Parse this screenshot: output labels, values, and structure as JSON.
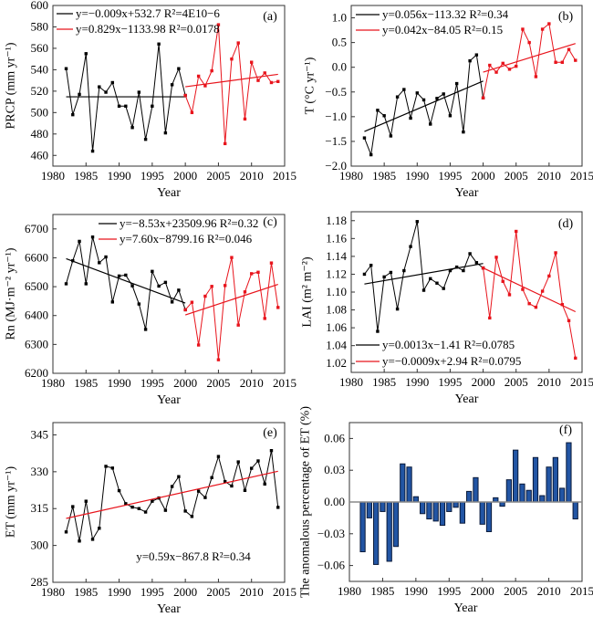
{
  "colors": {
    "period1": "#000000",
    "period2": "#e8141c",
    "bar": "#2255a4",
    "bar_edge": "#0a1a3a"
  },
  "chart_data": [
    {
      "panel": "(a)",
      "type": "line",
      "ylabel": "PRCP (mm yr⁻¹)",
      "xlabel": "Year",
      "xlim": [
        1980,
        2015
      ],
      "xtick_labels": [
        "1980",
        "1985",
        "1990",
        "1995",
        "2000",
        "2005",
        "2010",
        "2015"
      ],
      "ylim": [
        450,
        600
      ],
      "yticks": [
        460,
        480,
        500,
        520,
        540,
        560,
        580,
        600
      ],
      "ytick_labels": [
        "460",
        "480",
        "500",
        "520",
        "540",
        "560",
        "580",
        "600"
      ],
      "legend_position": "top-left",
      "series": [
        {
          "name": "y=−0.009x+532.7 R²=4E10−6",
          "color": "#000000",
          "x": [
            1982,
            1983,
            1984,
            1985,
            1986,
            1987,
            1988,
            1989,
            1990,
            1991,
            1992,
            1993,
            1994,
            1995,
            1996,
            1997,
            1998,
            1999,
            2000
          ],
          "y": [
            541,
            498,
            517,
            555,
            464,
            524,
            519,
            528,
            506,
            506,
            486,
            519,
            475,
            506,
            564,
            481,
            526,
            541,
            516
          ],
          "trend": [
            [
              1982,
              514.7
            ],
            [
              2000,
              514.7
            ]
          ]
        },
        {
          "name": "y=0.829x−1133.98 R²=0.0178",
          "color": "#e8141c",
          "x": [
            2000,
            2001,
            2002,
            2003,
            2004,
            2005,
            2006,
            2007,
            2008,
            2009,
            2010,
            2011,
            2012,
            2013,
            2014
          ],
          "y": [
            516,
            500,
            534,
            525,
            539,
            582,
            471,
            550,
            565,
            494,
            547,
            530,
            537,
            528,
            529
          ],
          "trend": [
            [
              2000,
              524.1
            ],
            [
              2014,
              535.7
            ]
          ]
        }
      ]
    },
    {
      "panel": "(b)",
      "type": "line",
      "ylabel": "T (°C yr⁻¹)",
      "xlabel": "Year",
      "xlim": [
        1980,
        2015
      ],
      "xtick_labels": [
        "1980",
        "1985",
        "1990",
        "1995",
        "2000",
        "2005",
        "2010",
        "2015"
      ],
      "ylim": [
        -2.0,
        1.25
      ],
      "yticks": [
        -2.0,
        -1.5,
        -1.0,
        -0.5,
        0.0,
        0.5,
        1.0
      ],
      "ytick_labels": [
        "−2.0",
        "−1.5",
        "−1.0",
        "−0.5",
        "0.0",
        "0.5",
        "1.0"
      ],
      "legend_position": "top-left",
      "series": [
        {
          "name": "y=0.056x−113.32 R²=0.34",
          "color": "#000000",
          "x": [
            1982,
            1983,
            1984,
            1985,
            1986,
            1987,
            1988,
            1989,
            1990,
            1991,
            1992,
            1993,
            1994,
            1995,
            1996,
            1997,
            1998,
            1999,
            2000
          ],
          "y": [
            -1.43,
            -1.77,
            -0.87,
            -0.98,
            -1.39,
            -0.6,
            -0.45,
            -1.03,
            -0.52,
            -0.66,
            -1.15,
            -0.63,
            -0.54,
            -0.98,
            -0.33,
            -1.31,
            0.13,
            0.25,
            -0.62
          ],
          "trend": [
            [
              1982,
              -1.3
            ],
            [
              2000,
              -0.28
            ]
          ]
        },
        {
          "name": "y=0.042x−84.05 R²=0.15",
          "color": "#e8141c",
          "x": [
            2000,
            2001,
            2002,
            2003,
            2004,
            2005,
            2006,
            2007,
            2008,
            2009,
            2010,
            2011,
            2012,
            2013,
            2014
          ],
          "y": [
            -0.62,
            0.04,
            -0.1,
            0.08,
            -0.04,
            0.02,
            0.77,
            0.5,
            -0.19,
            0.77,
            0.88,
            0.1,
            0.1,
            0.36,
            0.14
          ],
          "trend": [
            [
              2000,
              -0.1
            ],
            [
              2014,
              0.48
            ]
          ]
        }
      ]
    },
    {
      "panel": "(c)",
      "type": "line",
      "ylabel": "Rn (MJ·m⁻² yr⁻¹)",
      "xlabel": "Year",
      "xlim": [
        1980,
        2015
      ],
      "xtick_labels": [
        "1980",
        "1985",
        "1990",
        "1995",
        "2000",
        "2005",
        "2010",
        "2015"
      ],
      "ylim": [
        6200,
        6750
      ],
      "yticks": [
        6200,
        6300,
        6400,
        6500,
        6600,
        6700
      ],
      "ytick_labels": [
        "6200",
        "6300",
        "6400",
        "6500",
        "6600",
        "6700"
      ],
      "legend_position": "top",
      "series": [
        {
          "name": "y=−8.53x+23509.96 R²=0.32",
          "color": "#000000",
          "x": [
            1982,
            1983,
            1984,
            1985,
            1986,
            1987,
            1988,
            1989,
            1990,
            1991,
            1992,
            1993,
            1994,
            1995,
            1996,
            1997,
            1998,
            1999,
            2000
          ],
          "y": [
            6510,
            6590,
            6657,
            6510,
            6672,
            6583,
            6603,
            6447,
            6537,
            6540,
            6503,
            6440,
            6352,
            6553,
            6502,
            6515,
            6447,
            6488,
            6420
          ],
          "trend": [
            [
              1982,
              6597
            ],
            [
              2000,
              6443
            ]
          ]
        },
        {
          "name": "y=7.60x−8799.16 R²=0.046",
          "color": "#e8141c",
          "x": [
            2000,
            2001,
            2002,
            2003,
            2004,
            2005,
            2006,
            2007,
            2008,
            2009,
            2010,
            2011,
            2012,
            2013,
            2014
          ],
          "y": [
            6420,
            6446,
            6298,
            6467,
            6501,
            6247,
            6504,
            6601,
            6367,
            6482,
            6545,
            6550,
            6390,
            6582,
            6428
          ],
          "trend": [
            [
              2000,
              6402
            ],
            [
              2014,
              6508
            ]
          ]
        }
      ]
    },
    {
      "panel": "(d)",
      "type": "line",
      "ylabel": "LAI (m² m⁻²)",
      "xlabel": "Year",
      "xlim": [
        1980,
        2015
      ],
      "xtick_labels": [
        "1980",
        "1985",
        "1990",
        "1995",
        "2000",
        "2005",
        "2010",
        "2015"
      ],
      "ylim": [
        1.01,
        1.19
      ],
      "yticks": [
        1.02,
        1.04,
        1.06,
        1.08,
        1.1,
        1.12,
        1.14,
        1.16,
        1.18
      ],
      "ytick_labels": [
        "1.02",
        "1.04",
        "1.06",
        "1.08",
        "1.10",
        "1.12",
        "1.14",
        "1.16",
        "1.18"
      ],
      "legend_position": "bottom-left",
      "series": [
        {
          "name": "y=0.0013x−1.41 R²=0.0785",
          "color": "#000000",
          "x": [
            1982,
            1983,
            1984,
            1985,
            1986,
            1987,
            1988,
            1989,
            1990,
            1991,
            1992,
            1993,
            1994,
            1995,
            1996,
            1997,
            1998,
            1999,
            2000
          ],
          "y": [
            1.12,
            1.13,
            1.056,
            1.117,
            1.122,
            1.081,
            1.124,
            1.151,
            1.179,
            1.102,
            1.115,
            1.11,
            1.104,
            1.124,
            1.128,
            1.124,
            1.143,
            1.133,
            1.127
          ],
          "trend": [
            [
              1982,
              1.109
            ],
            [
              2000,
              1.132
            ]
          ]
        },
        {
          "name": "y=−0.0009x+2.94 R²=0.0795",
          "color": "#e8141c",
          "x": [
            2000,
            2001,
            2002,
            2003,
            2004,
            2005,
            2006,
            2007,
            2008,
            2009,
            2010,
            2011,
            2012,
            2013,
            2014
          ],
          "y": [
            1.127,
            1.071,
            1.139,
            1.112,
            1.097,
            1.168,
            1.103,
            1.087,
            1.083,
            1.101,
            1.118,
            1.144,
            1.086,
            1.068,
            1.026
          ],
          "trend": [
            [
              2000,
              1.127
            ],
            [
              2014,
              1.078
            ]
          ]
        }
      ]
    },
    {
      "panel": "(e)",
      "type": "line",
      "ylabel": "ET (mm yr⁻¹)",
      "xlabel": "Year",
      "xlim": [
        1980,
        2015
      ],
      "xtick_labels": [
        "1980",
        "1985",
        "1990",
        "1995",
        "2000",
        "2005",
        "2010",
        "2015"
      ],
      "ylim": [
        285,
        350
      ],
      "yticks": [
        285,
        300,
        315,
        330,
        345
      ],
      "ytick_labels": [
        "285",
        "300",
        "315",
        "330",
        "345"
      ],
      "annotation": "y=0.59x−867.8 R²=0.34",
      "series": [
        {
          "color": "#000000",
          "trend_color": "#e8141c",
          "x": [
            1982,
            1983,
            1984,
            1985,
            1986,
            1987,
            1988,
            1989,
            1990,
            1991,
            1992,
            1993,
            1994,
            1995,
            1996,
            1997,
            1998,
            1999,
            2000,
            2001,
            2002,
            2003,
            2004,
            2005,
            2006,
            2007,
            2008,
            2009,
            2010,
            2011,
            2012,
            2013,
            2014
          ],
          "y": [
            305.5,
            315.8,
            301.8,
            318,
            302.5,
            307,
            332.2,
            331.5,
            322.3,
            317,
            315.6,
            315,
            313.6,
            318,
            319.3,
            314.3,
            324,
            328,
            314,
            311.8,
            322.1,
            319.5,
            327.6,
            336.2,
            326,
            324.2,
            334,
            322.4,
            331.4,
            334.4,
            325,
            338.6,
            315.5
          ],
          "trend": [
            [
              1982,
              311.0
            ],
            [
              2014,
              330.2
            ]
          ]
        }
      ]
    },
    {
      "panel": "(f)",
      "type": "bar",
      "ylabel": "The anomalous percentage of ET (%)",
      "xlabel": "Year",
      "xlim": [
        1980,
        2015
      ],
      "xtick_labels": [
        "1980",
        "1985",
        "1990",
        "1995",
        "2000",
        "2005",
        "2010",
        "2015"
      ],
      "ylim": [
        -0.075,
        0.075
      ],
      "yticks": [
        -0.06,
        -0.03,
        0.0,
        0.03,
        0.06
      ],
      "ytick_labels": [
        "−0.06",
        "−0.03",
        "0.00",
        "0.03",
        "0.06"
      ],
      "categories": [
        1982,
        1983,
        1984,
        1985,
        1986,
        1987,
        1988,
        1989,
        1990,
        1991,
        1992,
        1993,
        1994,
        1995,
        1996,
        1997,
        1998,
        1999,
        2000,
        2001,
        2002,
        2003,
        2004,
        2005,
        2006,
        2007,
        2008,
        2009,
        2010,
        2011,
        2012,
        2013,
        2014
      ],
      "values": [
        -0.047,
        -0.015,
        -0.059,
        -0.009,
        -0.056,
        -0.042,
        0.036,
        0.033,
        0.005,
        -0.011,
        -0.016,
        -0.018,
        -0.022,
        -0.009,
        -0.005,
        -0.02,
        0.01,
        0.023,
        -0.021,
        -0.028,
        0.004,
        -0.004,
        0.021,
        0.049,
        0.017,
        0.011,
        0.042,
        0.006,
        0.033,
        0.042,
        0.013,
        0.056,
        -0.016
      ]
    }
  ]
}
